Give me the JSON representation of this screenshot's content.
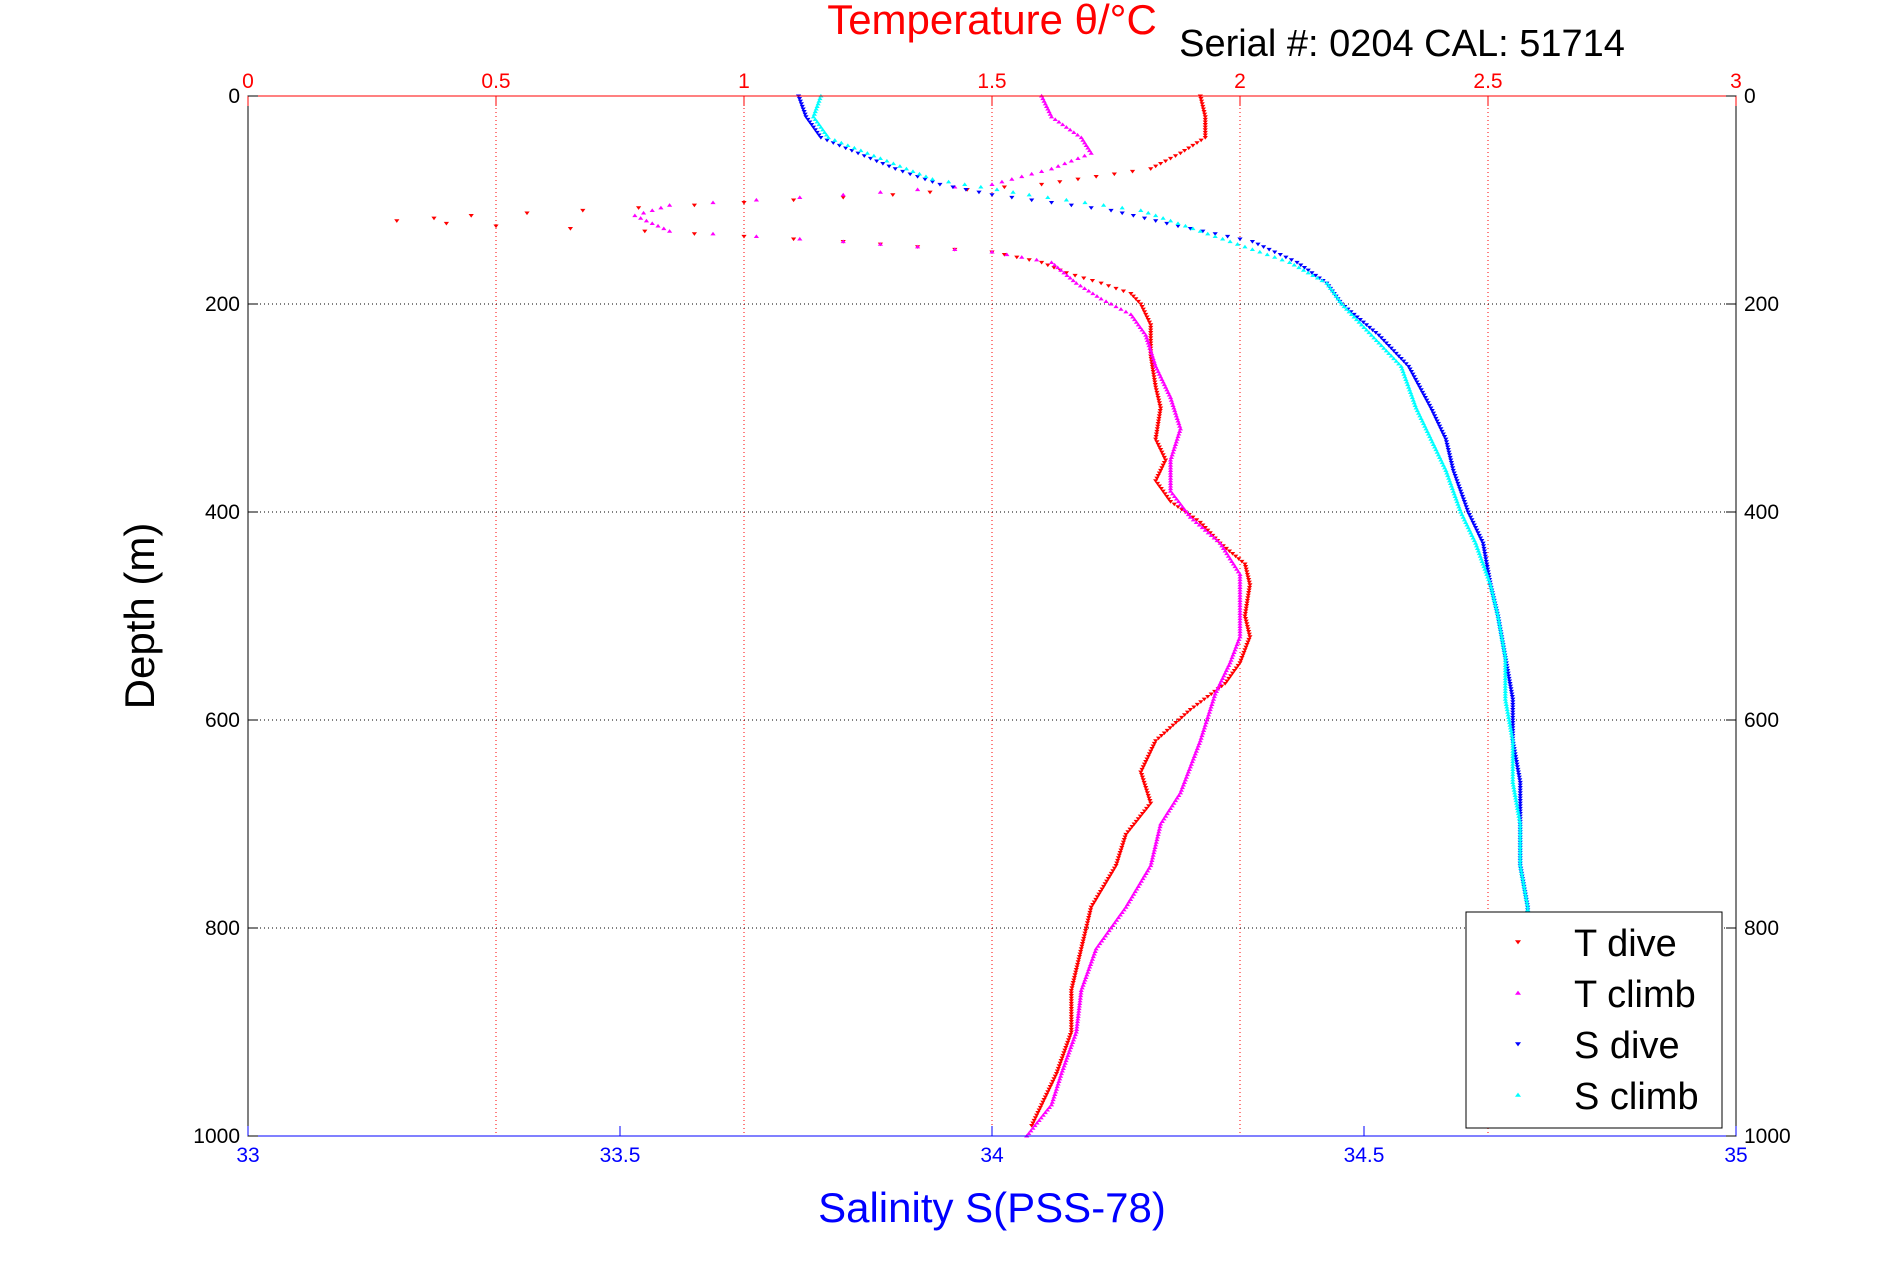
{
  "chart_data": {
    "type": "scatter",
    "title": "Temperature θ/°C",
    "annotation": "Serial #: 0204  CAL: 51714",
    "xlabel": "Salinity S(PSS-78)",
    "ylabel": "Depth (m)",
    "x_bottom": {
      "label": "Salinity S(PSS-78)",
      "range": [
        33,
        35
      ],
      "ticks": [
        "33",
        "33.5",
        "34",
        "34.5",
        "35"
      ],
      "tick_values": [
        33,
        33.5,
        34,
        34.5,
        35
      ],
      "color": "#0000ff"
    },
    "x_top": {
      "label": "Temperature θ/°C",
      "range": [
        0,
        3
      ],
      "ticks": [
        "0",
        "0.5",
        "1",
        "1.5",
        "2",
        "2.5",
        "3"
      ],
      "tick_values": [
        0,
        0.5,
        1,
        1.5,
        2,
        2.5,
        3
      ],
      "color": "#ff0000"
    },
    "y": {
      "label": "Depth (m)",
      "range": [
        0,
        1000
      ],
      "reversed": true,
      "ticks": [
        "0",
        "200",
        "400",
        "600",
        "800",
        "1000"
      ],
      "tick_values": [
        0,
        200,
        400,
        600,
        800,
        1000
      ]
    },
    "grid": true,
    "legend_position": "bottom-right",
    "series": [
      {
        "name": "T dive",
        "axis": "temperature",
        "color": "#ff0000",
        "marker": "triangle-down",
        "points": [
          [
            1.92,
            0
          ],
          [
            1.93,
            20
          ],
          [
            1.93,
            40
          ],
          [
            1.88,
            55
          ],
          [
            1.82,
            70
          ],
          [
            1.6,
            85
          ],
          [
            1.3,
            95
          ],
          [
            0.9,
            105
          ],
          [
            0.45,
            115
          ],
          [
            0.3,
            120
          ],
          [
            0.5,
            125
          ],
          [
            0.8,
            130
          ],
          [
            1.2,
            140
          ],
          [
            1.5,
            150
          ],
          [
            1.6,
            160
          ],
          [
            1.65,
            170
          ],
          [
            1.72,
            180
          ],
          [
            1.78,
            190
          ],
          [
            1.8,
            200
          ],
          [
            1.82,
            220
          ],
          [
            1.82,
            250
          ],
          [
            1.83,
            280
          ],
          [
            1.84,
            300
          ],
          [
            1.83,
            330
          ],
          [
            1.85,
            350
          ],
          [
            1.83,
            370
          ],
          [
            1.86,
            390
          ],
          [
            1.92,
            410
          ],
          [
            1.96,
            430
          ],
          [
            2.01,
            450
          ],
          [
            2.02,
            470
          ],
          [
            2.01,
            500
          ],
          [
            2.02,
            520
          ],
          [
            2.0,
            545
          ],
          [
            1.97,
            565
          ],
          [
            1.9,
            590
          ],
          [
            1.83,
            620
          ],
          [
            1.8,
            650
          ],
          [
            1.82,
            680
          ],
          [
            1.77,
            710
          ],
          [
            1.75,
            740
          ],
          [
            1.7,
            780
          ],
          [
            1.68,
            820
          ],
          [
            1.66,
            860
          ],
          [
            1.66,
            900
          ],
          [
            1.63,
            940
          ],
          [
            1.6,
            970
          ],
          [
            1.58,
            990
          ]
        ]
      },
      {
        "name": "T climb",
        "axis": "temperature",
        "color": "#ff00ff",
        "marker": "triangle-up",
        "points": [
          [
            1.6,
            0
          ],
          [
            1.62,
            20
          ],
          [
            1.68,
            40
          ],
          [
            1.7,
            55
          ],
          [
            1.62,
            70
          ],
          [
            1.5,
            85
          ],
          [
            1.2,
            95
          ],
          [
            0.85,
            105
          ],
          [
            0.78,
            115
          ],
          [
            0.85,
            130
          ],
          [
            1.2,
            140
          ],
          [
            1.5,
            150
          ],
          [
            1.62,
            160
          ],
          [
            1.67,
            180
          ],
          [
            1.72,
            195
          ],
          [
            1.78,
            210
          ],
          [
            1.81,
            230
          ],
          [
            1.83,
            260
          ],
          [
            1.86,
            290
          ],
          [
            1.88,
            320
          ],
          [
            1.86,
            350
          ],
          [
            1.86,
            380
          ],
          [
            1.9,
            405
          ],
          [
            1.96,
            430
          ],
          [
            2.0,
            460
          ],
          [
            2.0,
            490
          ],
          [
            2.0,
            520
          ],
          [
            1.98,
            545
          ],
          [
            1.95,
            575
          ],
          [
            1.92,
            620
          ],
          [
            1.88,
            670
          ],
          [
            1.84,
            700
          ],
          [
            1.82,
            740
          ],
          [
            1.77,
            780
          ],
          [
            1.71,
            820
          ],
          [
            1.68,
            860
          ],
          [
            1.67,
            900
          ],
          [
            1.64,
            940
          ],
          [
            1.62,
            970
          ],
          [
            1.57,
            1000
          ]
        ]
      },
      {
        "name": "S dive",
        "axis": "salinity",
        "color": "#0000ff",
        "marker": "triangle-down",
        "points": [
          [
            33.74,
            0
          ],
          [
            33.75,
            20
          ],
          [
            33.77,
            40
          ],
          [
            33.82,
            55
          ],
          [
            33.87,
            70
          ],
          [
            33.93,
            85
          ],
          [
            34.0,
            95
          ],
          [
            34.16,
            110
          ],
          [
            34.25,
            125
          ],
          [
            34.35,
            140
          ],
          [
            34.41,
            160
          ],
          [
            34.45,
            180
          ],
          [
            34.47,
            200
          ],
          [
            34.52,
            230
          ],
          [
            34.56,
            260
          ],
          [
            34.59,
            300
          ],
          [
            34.61,
            330
          ],
          [
            34.62,
            360
          ],
          [
            34.64,
            400
          ],
          [
            34.66,
            430
          ],
          [
            34.67,
            470
          ],
          [
            34.68,
            500
          ],
          [
            34.69,
            540
          ],
          [
            34.7,
            580
          ],
          [
            34.7,
            620
          ],
          [
            34.71,
            660
          ],
          [
            34.71,
            700
          ],
          [
            34.71,
            740
          ],
          [
            34.72,
            780
          ],
          [
            34.72,
            820
          ],
          [
            34.72,
            860
          ],
          [
            34.72,
            900
          ],
          [
            34.72,
            940
          ],
          [
            34.72,
            980
          ]
        ]
      },
      {
        "name": "S climb",
        "axis": "salinity",
        "color": "#00ffff",
        "marker": "triangle-up",
        "points": [
          [
            33.77,
            0
          ],
          [
            33.76,
            20
          ],
          [
            33.78,
            40
          ],
          [
            33.85,
            60
          ],
          [
            33.92,
            80
          ],
          [
            34.05,
            95
          ],
          [
            34.2,
            110
          ],
          [
            34.26,
            125
          ],
          [
            34.32,
            140
          ],
          [
            34.4,
            160
          ],
          [
            34.45,
            180
          ],
          [
            34.47,
            200
          ],
          [
            34.51,
            230
          ],
          [
            34.55,
            260
          ],
          [
            34.57,
            300
          ],
          [
            34.59,
            330
          ],
          [
            34.61,
            360
          ],
          [
            34.63,
            400
          ],
          [
            34.65,
            430
          ],
          [
            34.67,
            470
          ],
          [
            34.68,
            500
          ],
          [
            34.69,
            540
          ],
          [
            34.69,
            580
          ],
          [
            34.7,
            620
          ],
          [
            34.7,
            660
          ],
          [
            34.71,
            700
          ],
          [
            34.71,
            740
          ],
          [
            34.72,
            780
          ],
          [
            34.72,
            820
          ],
          [
            34.72,
            860
          ],
          [
            34.72,
            900
          ],
          [
            34.72,
            940
          ],
          [
            34.72,
            990
          ]
        ]
      }
    ]
  }
}
